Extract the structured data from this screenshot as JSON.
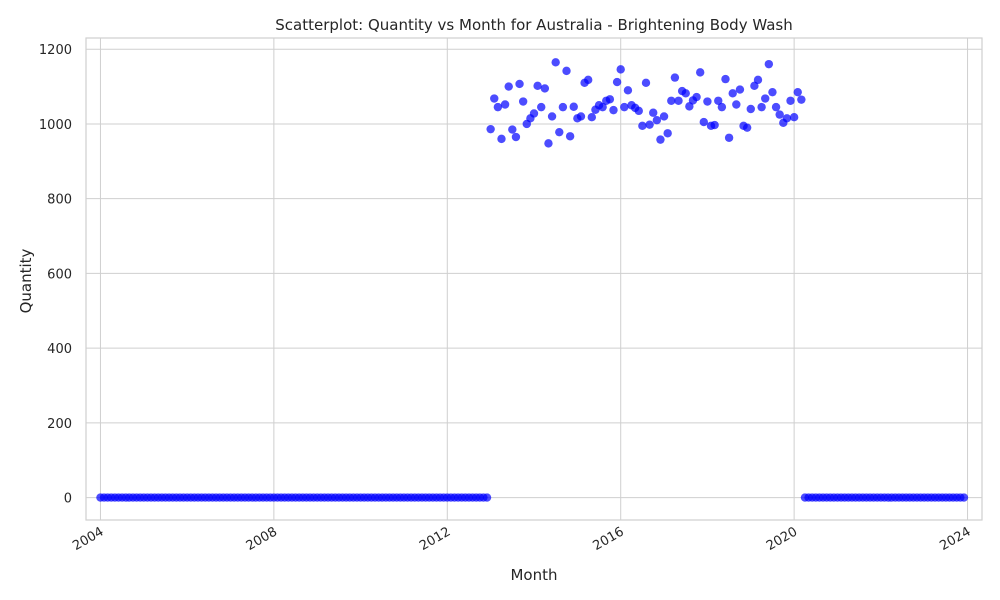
{
  "chart_data": {
    "type": "scatter",
    "title": "Scatterplot: Quantity vs Month for Australia - Brightening Body Wash",
    "xlabel": "Month",
    "ylabel": "Quantity",
    "x_axis": "date (monthly)",
    "xlim": [
      "2003-09",
      "2024-05"
    ],
    "ylim": [
      -60,
      1230
    ],
    "xticks": [
      "2004",
      "2008",
      "2012",
      "2016",
      "2020",
      "2024"
    ],
    "yticks": [
      0,
      200,
      400,
      600,
      800,
      1000,
      1200
    ],
    "grid": true,
    "legend": "none",
    "marker_color": "#0000ff",
    "series": [
      {
        "x_start": "2004-01",
        "x_end": "2012-12",
        "frequency": "monthly",
        "values": [
          0,
          0,
          0,
          0,
          0,
          0,
          0,
          0,
          0,
          0,
          0,
          0,
          0,
          0,
          0,
          0,
          0,
          0,
          0,
          0,
          0,
          0,
          0,
          0,
          0,
          0,
          0,
          0,
          0,
          0,
          0,
          0,
          0,
          0,
          0,
          0,
          0,
          0,
          0,
          0,
          0,
          0,
          0,
          0,
          0,
          0,
          0,
          0,
          0,
          0,
          0,
          0,
          0,
          0,
          0,
          0,
          0,
          0,
          0,
          0,
          0,
          0,
          0,
          0,
          0,
          0,
          0,
          0,
          0,
          0,
          0,
          0,
          0,
          0,
          0,
          0,
          0,
          0,
          0,
          0,
          0,
          0,
          0,
          0,
          0,
          0,
          0,
          0,
          0,
          0,
          0,
          0,
          0,
          0,
          0,
          0,
          0,
          0,
          0,
          0,
          0,
          0,
          0,
          0,
          0,
          0,
          0,
          0
        ]
      },
      {
        "x_start": "2013-01",
        "x_end": "2020-03",
        "frequency": "monthly",
        "values": [
          986,
          1068,
          1045,
          960,
          1052,
          1100,
          985,
          965,
          1107,
          1060,
          1000,
          1015,
          1028,
          1102,
          1045,
          1095,
          948,
          1020,
          1165,
          978,
          1045,
          1142,
          967,
          1046,
          1015,
          1020,
          1110,
          1118,
          1018,
          1038,
          1050,
          1045,
          1062,
          1066,
          1037,
          1112,
          1146,
          1045,
          1090,
          1050,
          1043,
          1035,
          995,
          1110,
          998,
          1030,
          1010,
          958,
          1020,
          975,
          1062,
          1124,
          1062,
          1088,
          1082,
          1047,
          1063,
          1072,
          1138,
          1005,
          1060,
          995,
          997,
          1062,
          1045,
          1120,
          963,
          1082,
          1052,
          1092,
          995,
          990,
          1040,
          1102,
          1118,
          1045,
          1068,
          1160,
          1085,
          1045,
          1025,
          1003,
          1015,
          1062,
          1018,
          1085,
          1065
        ]
      },
      {
        "x_start": "2020-04",
        "x_end": "2023-12",
        "frequency": "monthly",
        "values": [
          0,
          0,
          0,
          0,
          0,
          0,
          0,
          0,
          0,
          0,
          0,
          0,
          0,
          0,
          0,
          0,
          0,
          0,
          0,
          0,
          0,
          0,
          0,
          0,
          0,
          0,
          0,
          0,
          0,
          0,
          0,
          0,
          0,
          0,
          0,
          0,
          0,
          0,
          0,
          0,
          0,
          0,
          0,
          0,
          0
        ]
      }
    ]
  }
}
